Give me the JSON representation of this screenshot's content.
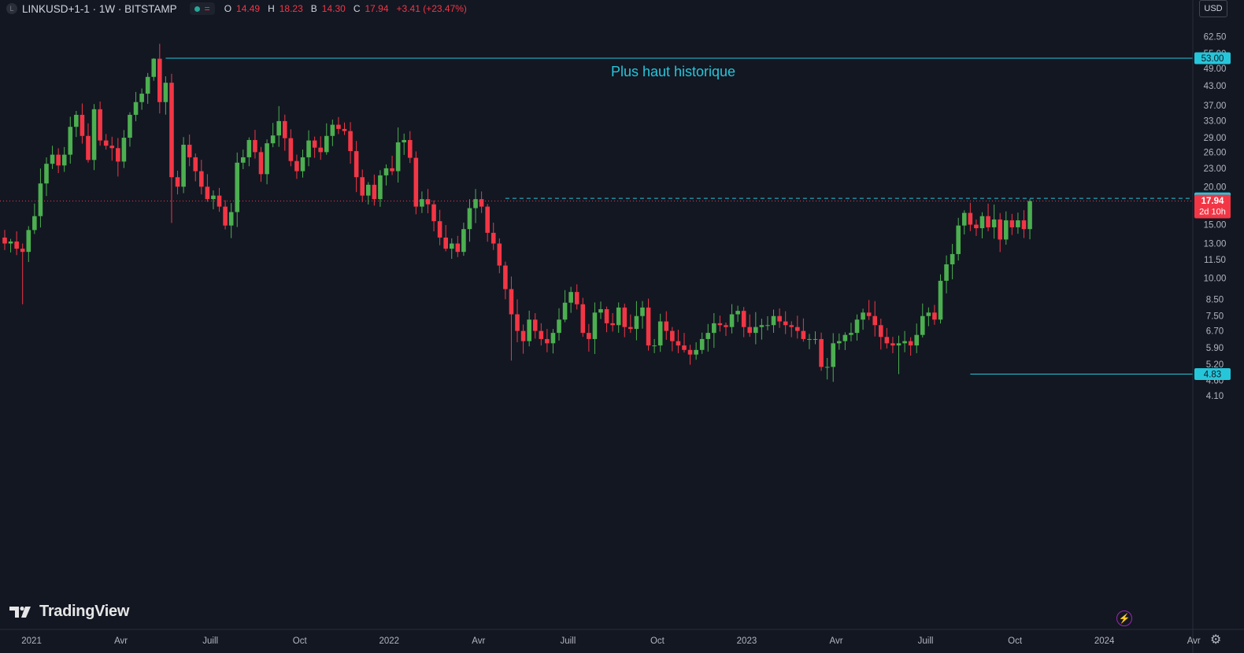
{
  "header": {
    "symbol_badge": "L",
    "title": "LINKUSD+1-1 · 1W · BITSTAMP",
    "open_label": "O",
    "open": "14.49",
    "high_label": "H",
    "high": "18.23",
    "low_label": "B",
    "low": "14.30",
    "close_label": "C",
    "close": "17.94",
    "change": "+3.41 (+23.47%)",
    "status_icon": "equals-icon"
  },
  "currency": "USD",
  "branding": {
    "logo_text": "TradingView"
  },
  "colors": {
    "background": "#131722",
    "up": "#4caf50",
    "down": "#f23645",
    "level": "#26c6da",
    "grid": "#2a2e39"
  },
  "chart_data": {
    "type": "candlestick",
    "interval": "1W",
    "y_scale": "log",
    "ylim": [
      3.75,
      66
    ],
    "x_ticks": [
      "2021",
      "Avr",
      "Juill",
      "Oct",
      "2022",
      "Avr",
      "Juill",
      "Oct",
      "2023",
      "Avr",
      "Juill",
      "Oct",
      "2024",
      "Avr"
    ],
    "y_ticks": [
      "62.50",
      "55.00",
      "49.00",
      "43.00",
      "37.00",
      "33.00",
      "29.00",
      "26.00",
      "23.00",
      "20.00",
      "15.00",
      "13.00",
      "11.50",
      "10.00",
      "8.50",
      "7.50",
      "6.70",
      "5.90",
      "5.20",
      "4.60",
      "4.10"
    ],
    "price_labels": [
      {
        "value": "53.00",
        "kind": "ath"
      },
      {
        "value": "18.31",
        "kind": "resistance"
      },
      {
        "value": "17.94",
        "sub": "2d 10h",
        "kind": "last"
      },
      {
        "value": "4.83",
        "kind": "low"
      }
    ],
    "annotations": [
      {
        "text": "Plus haut historique",
        "price": 53.0
      }
    ],
    "horizontal_lines": [
      {
        "price": 53.0,
        "style": "solid",
        "from_index": 27
      },
      {
        "price": 18.31,
        "style": "dashed",
        "from_index": 84
      },
      {
        "price": 4.83,
        "style": "solid",
        "from_index": 162
      }
    ],
    "last_price": 17.94,
    "closes": [
      13.0,
      13.2,
      12.5,
      12.2,
      14.4,
      16.0,
      20.5,
      23.8,
      25.5,
      23.5,
      25.5,
      31.5,
      34.5,
      29.4,
      24.5,
      36.0,
      28.4,
      27.3,
      26.8,
      24.2,
      29.0,
      34.5,
      38.0,
      40.5,
      46.0,
      52.8,
      38.0,
      44.0,
      21.5,
      20.0,
      27.5,
      25.0,
      22.5,
      20.0,
      18.2,
      18.7,
      17.2,
      14.9,
      16.5,
      24.0,
      25.0,
      28.5,
      26.0,
      22.0,
      27.8,
      29.5,
      32.9,
      28.9,
      24.3,
      22.5,
      25.0,
      28.4,
      26.9,
      26.0,
      29.4,
      32.0,
      31.0,
      30.5,
      26.2,
      21.5,
      18.7,
      20.3,
      18.2,
      21.8,
      23.0,
      22.5,
      28.0,
      28.5,
      24.9,
      17.2,
      18.2,
      17.5,
      15.4,
      13.6,
      12.5,
      13.0,
      12.2,
      14.5,
      17.0,
      18.2,
      17.2,
      14.1,
      13.0,
      11.0,
      9.2,
      7.6,
      6.7,
      6.2,
      7.3,
      6.7,
      6.3,
      6.1,
      6.6,
      7.3,
      8.3,
      9.0,
      8.2,
      6.6,
      6.3,
      7.7,
      7.9,
      7.1,
      7.0,
      8.0,
      6.9,
      6.8,
      7.5,
      8.0,
      6.0,
      6.0,
      7.2,
      6.7,
      6.2,
      6.0,
      5.8,
      5.6,
      5.8,
      6.3,
      6.6,
      7.1,
      7.0,
      6.9,
      7.6,
      7.8,
      6.9,
      6.6,
      6.9,
      7.0,
      7.0,
      7.5,
      7.2,
      7.0,
      6.9,
      6.7,
      6.3,
      6.3,
      6.3,
      5.1,
      5.1,
      6.1,
      6.2,
      6.5,
      6.6,
      7.3,
      7.7,
      7.5,
      7.0,
      6.4,
      6.1,
      6.0,
      6.1,
      6.2,
      6.0,
      6.5,
      7.5,
      7.7,
      7.3,
      9.8,
      11.1,
      12.0,
      14.9,
      16.4,
      15.0,
      14.6,
      16.0,
      14.7,
      15.6,
      13.4,
      15.5,
      14.7,
      15.5,
      14.5,
      17.94
    ]
  }
}
